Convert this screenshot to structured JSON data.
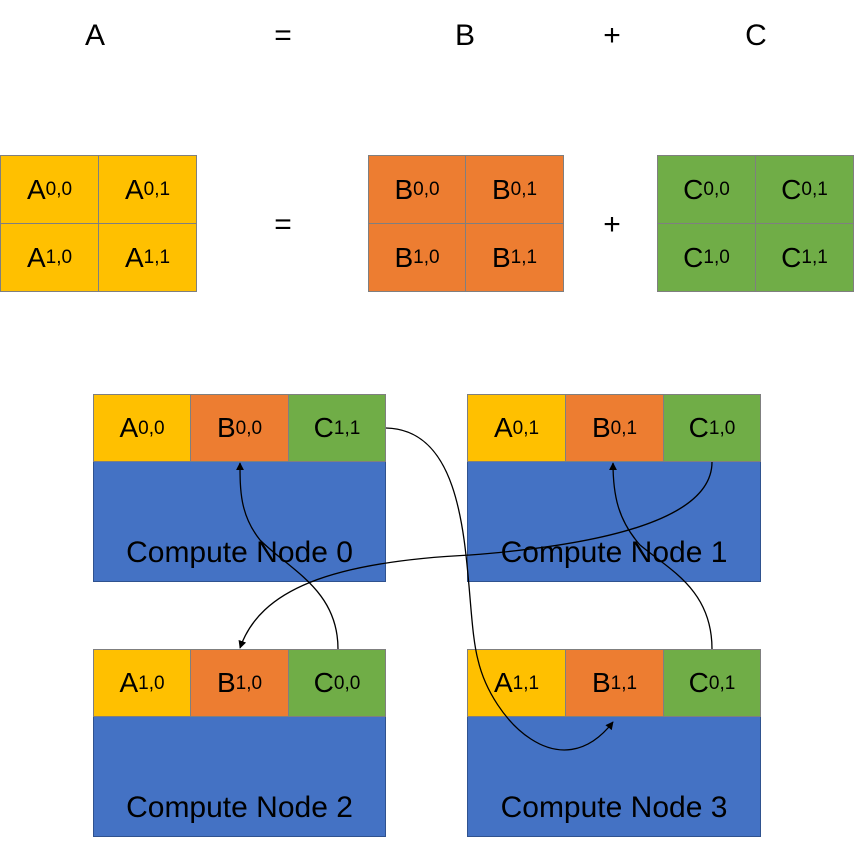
{
  "equation_header": {
    "a": "A",
    "equals": "=",
    "b": "B",
    "plus": "+",
    "c": "C"
  },
  "block_equation": {
    "equals": "=",
    "plus": "+"
  },
  "matrices": {
    "a": [
      {
        "base": "A",
        "sub": "0,0"
      },
      {
        "base": "A",
        "sub": "0,1"
      },
      {
        "base": "A",
        "sub": "1,0"
      },
      {
        "base": "A",
        "sub": "1,1"
      }
    ],
    "b": [
      {
        "base": "B",
        "sub": "0,0"
      },
      {
        "base": "B",
        "sub": "0,1"
      },
      {
        "base": "B",
        "sub": "1,0"
      },
      {
        "base": "B",
        "sub": "1,1"
      }
    ],
    "c": [
      {
        "base": "C",
        "sub": "0,0"
      },
      {
        "base": "C",
        "sub": "0,1"
      },
      {
        "base": "C",
        "sub": "1,0"
      },
      {
        "base": "C",
        "sub": "1,1"
      }
    ]
  },
  "nodes": [
    {
      "label": "Compute Node 0",
      "blocks": [
        {
          "base": "A",
          "sub": "0,0"
        },
        {
          "base": "B",
          "sub": "0,0"
        },
        {
          "base": "C",
          "sub": "1,1"
        }
      ]
    },
    {
      "label": "Compute Node 1",
      "blocks": [
        {
          "base": "A",
          "sub": "0,1"
        },
        {
          "base": "B",
          "sub": "0,1"
        },
        {
          "base": "C",
          "sub": "1,0"
        }
      ]
    },
    {
      "label": "Compute Node 2",
      "blocks": [
        {
          "base": "A",
          "sub": "1,0"
        },
        {
          "base": "B",
          "sub": "1,0"
        },
        {
          "base": "C",
          "sub": "0,0"
        }
      ]
    },
    {
      "label": "Compute Node 3",
      "blocks": [
        {
          "base": "A",
          "sub": "1,1"
        },
        {
          "base": "B",
          "sub": "1,1"
        },
        {
          "base": "C",
          "sub": "0,1"
        }
      ]
    }
  ],
  "colors": {
    "a_block": "#ffc000",
    "b_block": "#ed7d31",
    "c_block": "#70ad47",
    "node_body": "#4472c4",
    "arrow": "#000000"
  }
}
